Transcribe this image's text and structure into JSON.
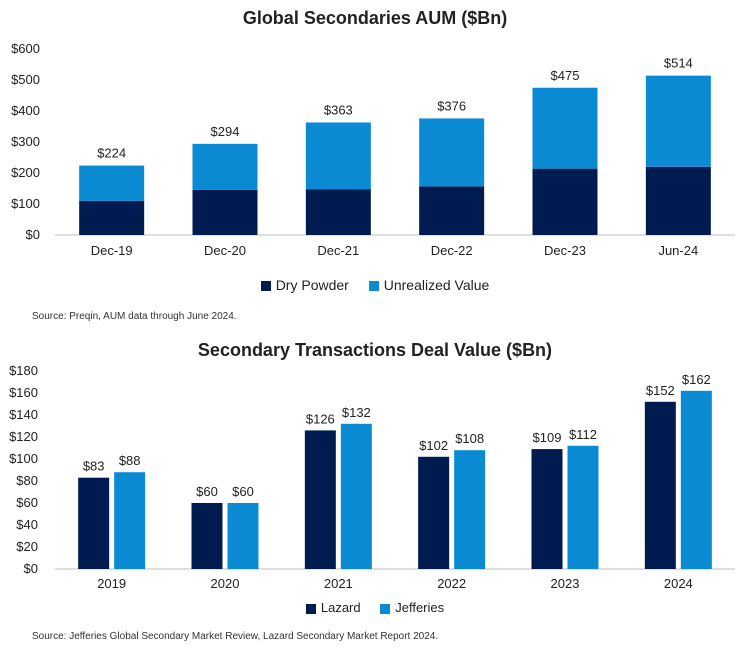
{
  "colors": {
    "dark": "#001b4f",
    "light": "#0a8ad3",
    "axis": "#bfbfbf"
  },
  "chart_data": [
    {
      "type": "bar",
      "stacked": true,
      "title": "Global Secondaries AUM ($Bn)",
      "categories": [
        "Dec-19",
        "Dec-20",
        "Dec-21",
        "Dec-22",
        "Dec-23",
        "Jun-24"
      ],
      "series": [
        {
          "name": "Dry Powder",
          "values": [
            110,
            146,
            148,
            157,
            214,
            220
          ]
        },
        {
          "name": "Unrealized Value",
          "values": [
            114,
            148,
            215,
            219,
            261,
            294
          ]
        }
      ],
      "totals": [
        224,
        294,
        363,
        376,
        475,
        514
      ],
      "total_labels": [
        "$224",
        "$294",
        "$363",
        "$376",
        "$475",
        "$514"
      ],
      "ylim": [
        0,
        600
      ],
      "yticks": [
        0,
        100,
        200,
        300,
        400,
        500,
        600
      ],
      "ytick_labels": [
        "$0",
        "$100",
        "$200",
        "$300",
        "$400",
        "$500",
        "$600"
      ],
      "legend": "bottom",
      "source": "Source: Preqin, AUM data through June 2024."
    },
    {
      "type": "bar",
      "stacked": false,
      "title": "Secondary Transactions Deal Value ($Bn)",
      "categories": [
        "2019",
        "2020",
        "2021",
        "2022",
        "2023",
        "2024"
      ],
      "series": [
        {
          "name": "Lazard",
          "values": [
            83,
            60,
            126,
            102,
            109,
            152
          ],
          "labels": [
            "$83",
            "$60",
            "$126",
            "$102",
            "$109",
            "$152"
          ]
        },
        {
          "name": "Jefferies",
          "values": [
            88,
            60,
            132,
            108,
            112,
            162
          ],
          "labels": [
            "$88",
            "$60",
            "$132",
            "$108",
            "$112",
            "$162"
          ]
        }
      ],
      "ylim": [
        0,
        180
      ],
      "yticks": [
        0,
        20,
        40,
        60,
        80,
        100,
        120,
        140,
        160,
        180
      ],
      "ytick_labels": [
        "$0",
        "$20",
        "$40",
        "$60",
        "$80",
        "$100",
        "$120",
        "$140",
        "$160",
        "$180"
      ],
      "legend": "bottom",
      "source": "Source: Jefferies Global Secondary Market Review, Lazard Secondary Market Report 2024."
    }
  ]
}
